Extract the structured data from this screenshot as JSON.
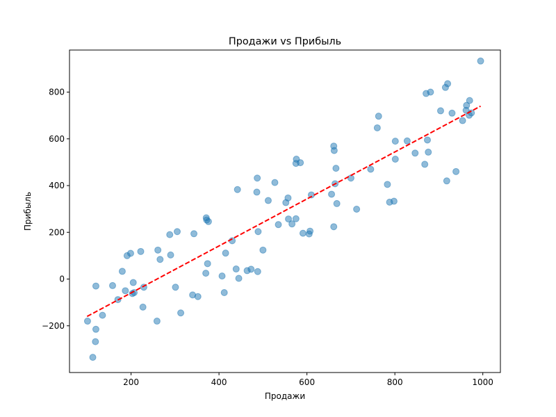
{
  "chart_data": {
    "type": "scatter",
    "title": "Продажи vs Прибыль",
    "xlabel": "Продажи",
    "ylabel": "Прибыль",
    "xlim": [
      60,
      1040
    ],
    "ylim": [
      -400,
      980
    ],
    "xticks": [
      200,
      400,
      600,
      800,
      1000
    ],
    "yticks": [
      -200,
      0,
      200,
      400,
      600,
      800
    ],
    "grid": false,
    "series": [
      {
        "kind": "scatter",
        "color": "#1f77b4",
        "points": [
          [
            101,
            -180
          ],
          [
            113,
            -335
          ],
          [
            119,
            -268
          ],
          [
            120,
            -215
          ],
          [
            120,
            -30
          ],
          [
            135,
            -155
          ],
          [
            158,
            -28
          ],
          [
            170,
            -88
          ],
          [
            180,
            33
          ],
          [
            187,
            -50
          ],
          [
            191,
            100
          ],
          [
            199,
            110
          ],
          [
            203,
            -62
          ],
          [
            205,
            -15
          ],
          [
            207,
            -58
          ],
          [
            222,
            118
          ],
          [
            227,
            -120
          ],
          [
            229,
            -35
          ],
          [
            259,
            -180
          ],
          [
            261,
            124
          ],
          [
            266,
            84
          ],
          [
            288,
            190
          ],
          [
            290,
            103
          ],
          [
            301,
            -35
          ],
          [
            305,
            203
          ],
          [
            313,
            -145
          ],
          [
            340,
            -68
          ],
          [
            343,
            194
          ],
          [
            352,
            -75
          ],
          [
            370,
            25
          ],
          [
            371,
            262
          ],
          [
            372,
            253
          ],
          [
            374,
            66
          ],
          [
            376,
            246
          ],
          [
            407,
            13
          ],
          [
            412,
            -58
          ],
          [
            415,
            111
          ],
          [
            430,
            164
          ],
          [
            439,
            43
          ],
          [
            442,
            383
          ],
          [
            445,
            3
          ],
          [
            464,
            36
          ],
          [
            473,
            42
          ],
          [
            486,
            372
          ],
          [
            487,
            432
          ],
          [
            488,
            32
          ],
          [
            489,
            203
          ],
          [
            500,
            124
          ],
          [
            512,
            336
          ],
          [
            527,
            413
          ],
          [
            535,
            233
          ],
          [
            552,
            327
          ],
          [
            557,
            347
          ],
          [
            558,
            257
          ],
          [
            566,
            236
          ],
          [
            575,
            495
          ],
          [
            575,
            258
          ],
          [
            576,
            513
          ],
          [
            585,
            498
          ],
          [
            591,
            196
          ],
          [
            605,
            193
          ],
          [
            607,
            205
          ],
          [
            610,
            360
          ],
          [
            656,
            363
          ],
          [
            661,
            224
          ],
          [
            661,
            569
          ],
          [
            662,
            550
          ],
          [
            664,
            408
          ],
          [
            666,
            474
          ],
          [
            668,
            323
          ],
          [
            700,
            432
          ],
          [
            713,
            299
          ],
          [
            745,
            470
          ],
          [
            760,
            647
          ],
          [
            763,
            697
          ],
          [
            783,
            405
          ],
          [
            788,
            329
          ],
          [
            798,
            333
          ],
          [
            801,
            590
          ],
          [
            801,
            513
          ],
          [
            828,
            591
          ],
          [
            846,
            539
          ],
          [
            868,
            491
          ],
          [
            871,
            794
          ],
          [
            874,
            595
          ],
          [
            876,
            543
          ],
          [
            881,
            800
          ],
          [
            904,
            720
          ],
          [
            915,
            820
          ],
          [
            918,
            420
          ],
          [
            920,
            836
          ],
          [
            930,
            710
          ],
          [
            939,
            460
          ],
          [
            954,
            678
          ],
          [
            962,
            722
          ],
          [
            963,
            743
          ],
          [
            969,
            701
          ],
          [
            970,
            764
          ],
          [
            974,
            711
          ],
          [
            995,
            933
          ]
        ]
      },
      {
        "kind": "trend",
        "color": "#ff0000",
        "style": "dashed",
        "x": [
          100,
          995
        ],
        "y": [
          -160,
          740
        ]
      }
    ]
  }
}
